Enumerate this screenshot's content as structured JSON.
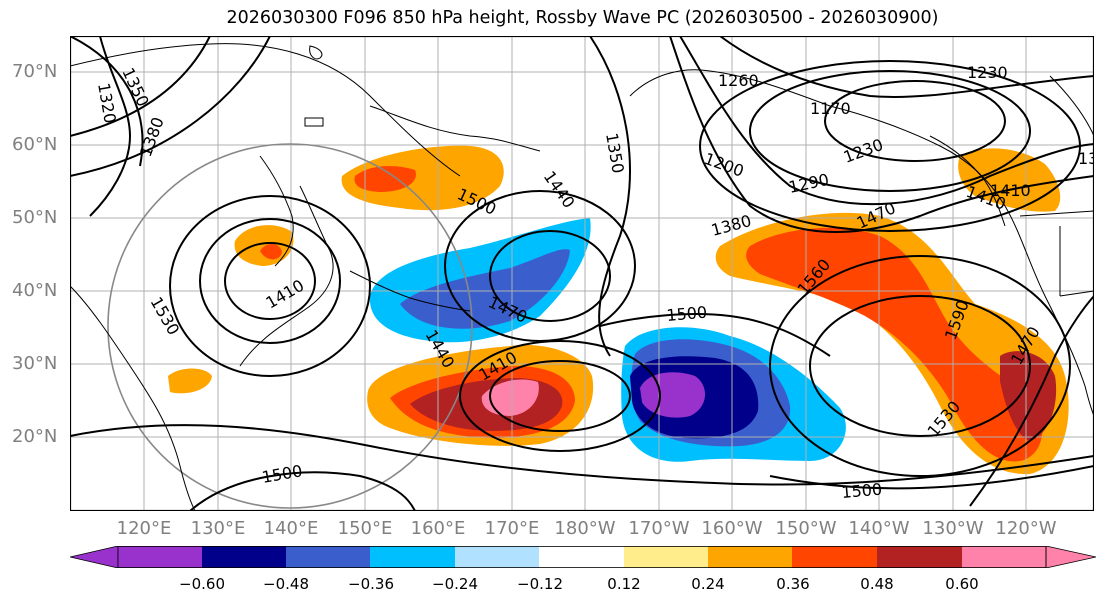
{
  "title": "2026030300 F096 850 hPa height, Rossby Wave PC (2026030500 - 2026030900)",
  "lat_labels": [
    "70°N",
    "60°N",
    "50°N",
    "40°N",
    "30°N",
    "20°N"
  ],
  "lon_labels": [
    "120°E",
    "130°E",
    "140°E",
    "150°E",
    "160°E",
    "170°E",
    "180°W",
    "170°W",
    "160°W",
    "150°W",
    "140°W",
    "130°W",
    "120°W"
  ],
  "contour_labels": [
    "1350",
    "1320",
    "1380",
    "1260",
    "1230",
    "1170",
    "1200",
    "1230",
    "1290",
    "1350",
    "1440",
    "1500",
    "1380",
    "1470",
    "1410",
    "1410",
    "1470",
    "1440",
    "1410",
    "1530",
    "1500",
    "1560",
    "1590",
    "1530",
    "1470",
    "1500",
    "1500",
    "13",
    "1410"
  ],
  "colorbar": {
    "ticks": [
      "−0.60",
      "−0.48",
      "−0.36",
      "−0.24",
      "−0.12",
      "0.12",
      "0.24",
      "0.36",
      "0.48",
      "0.60"
    ],
    "colors": [
      "#9932cc",
      "#00008b",
      "#3a5fcd",
      "#00bfff",
      "#b0e2ff",
      "#ffffff",
      "#ffec8b",
      "#ffa500",
      "#ff4500",
      "#b22222",
      "#ff82ab"
    ]
  }
}
